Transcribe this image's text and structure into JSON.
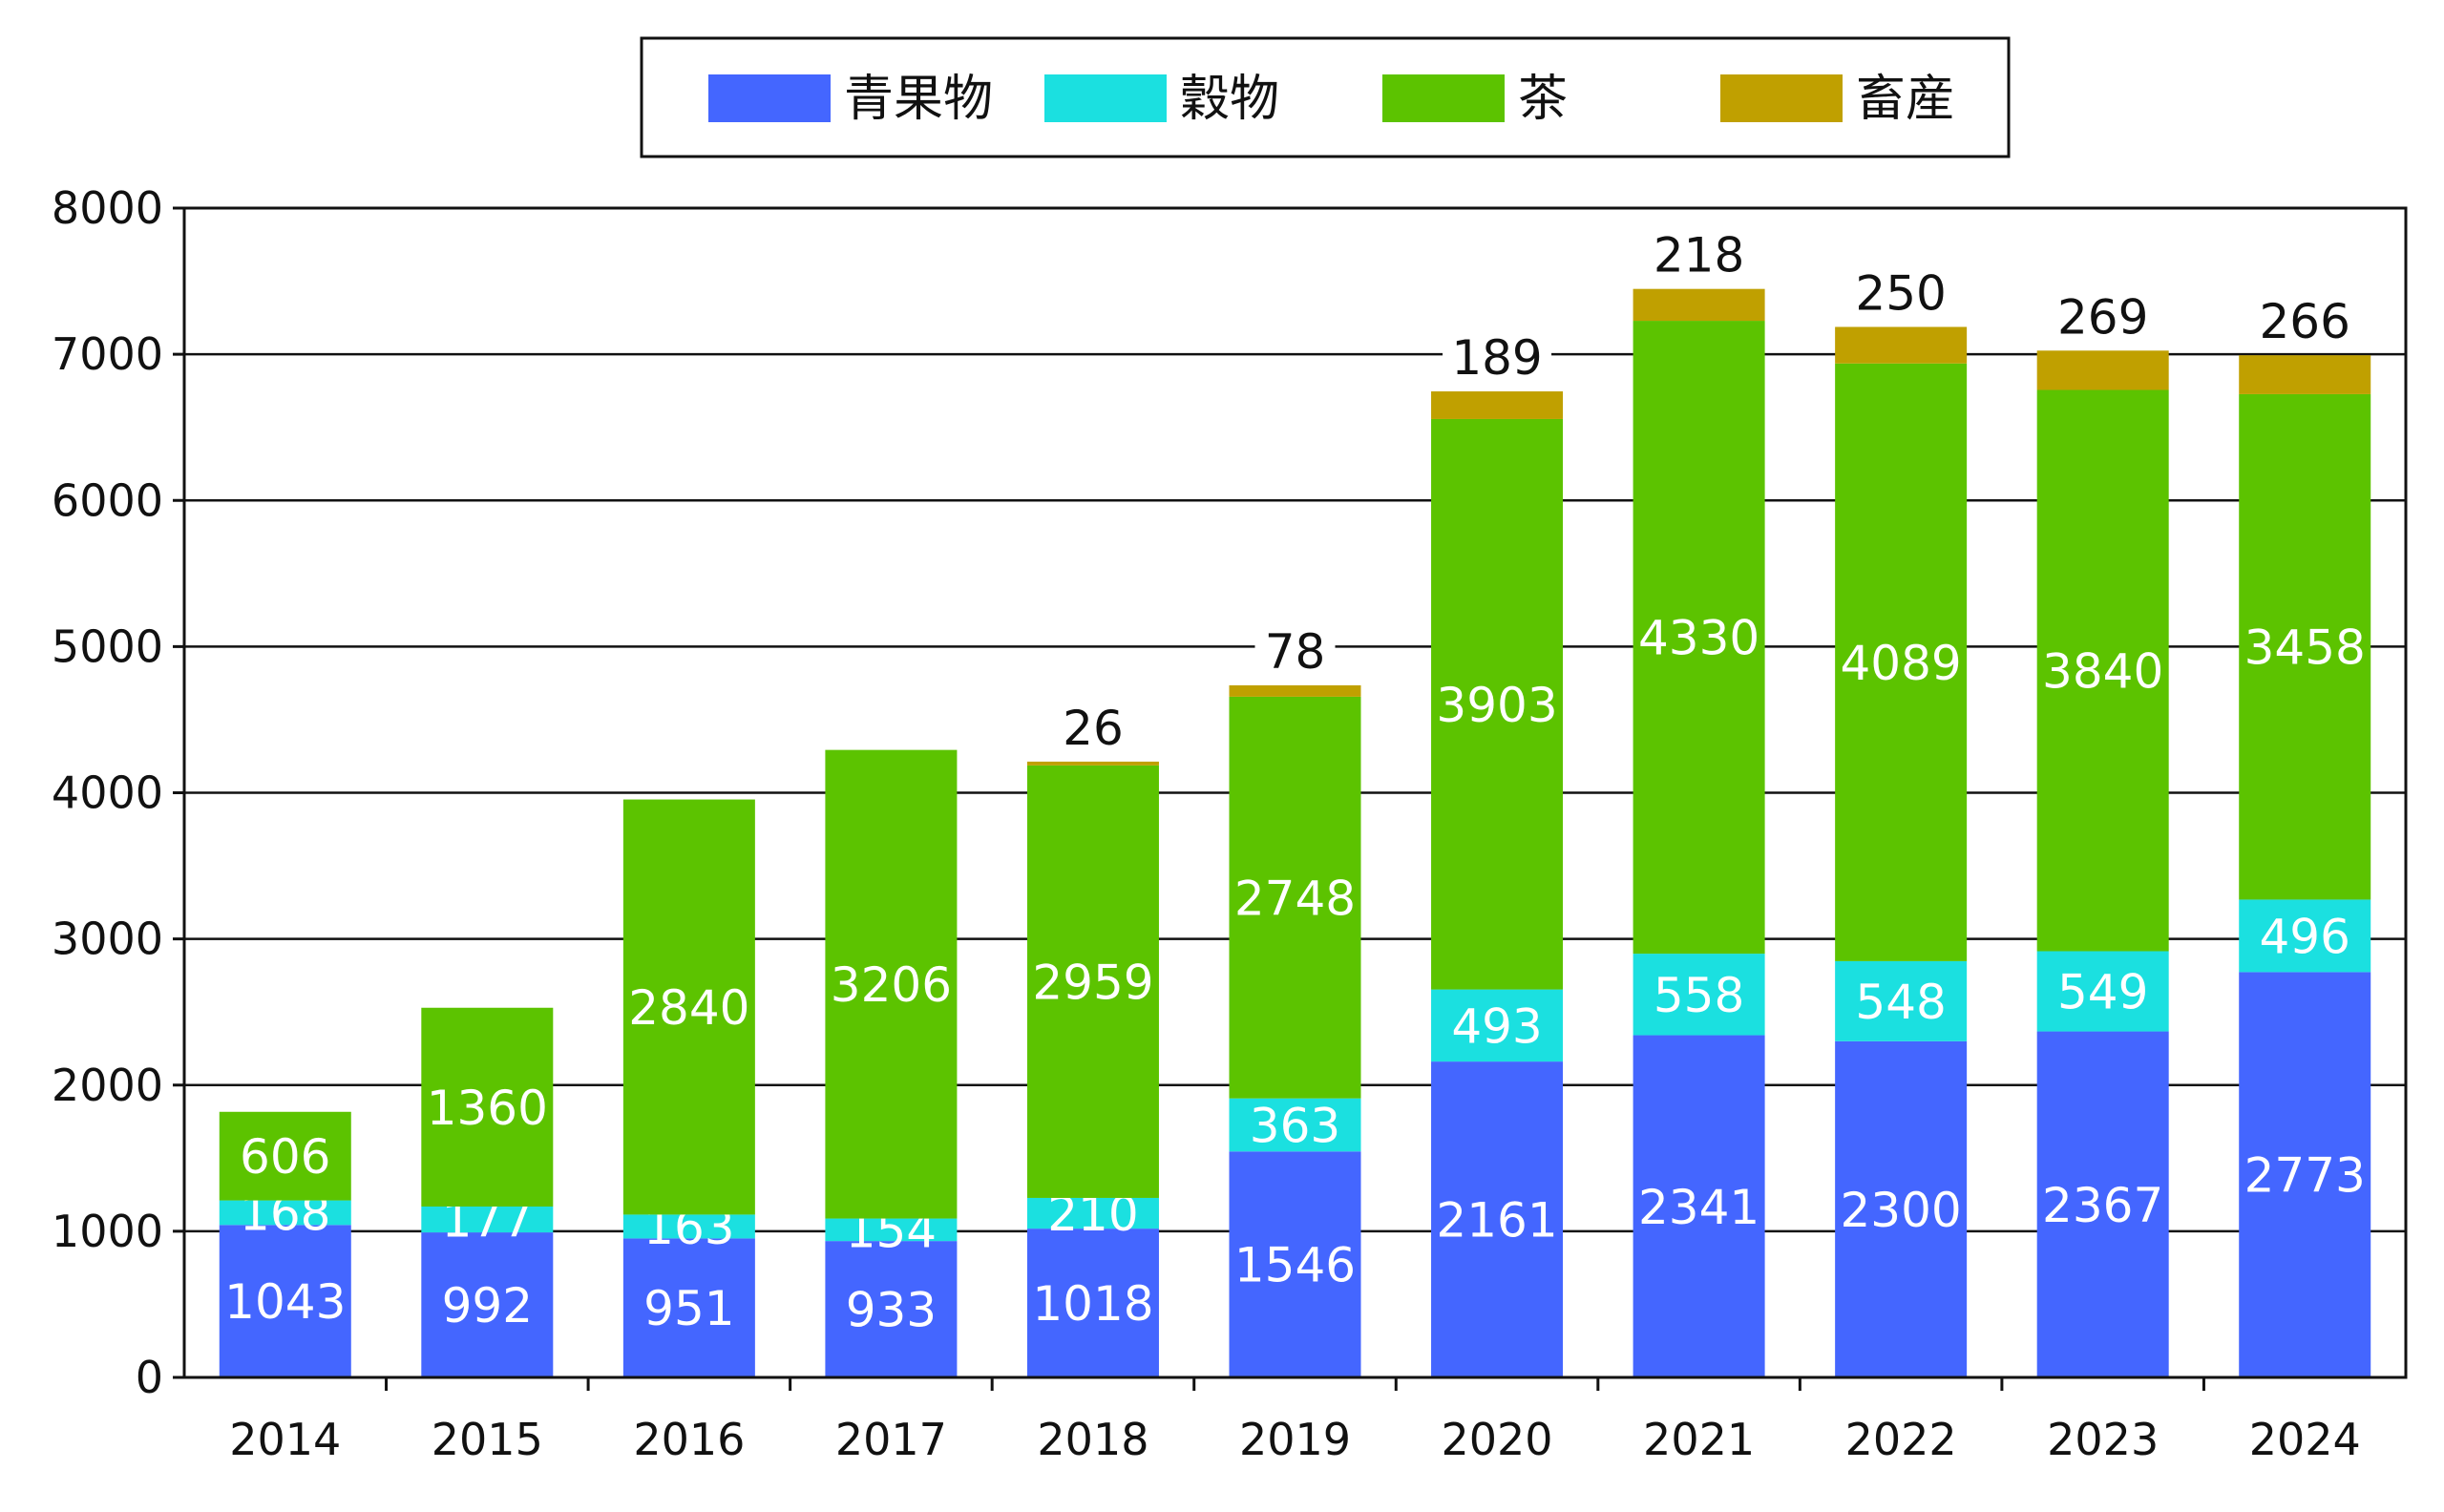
{
  "chart_data": {
    "type": "bar",
    "stacked": true,
    "title": "",
    "xlabel": "",
    "ylabel": "",
    "ylim": [
      0,
      8000
    ],
    "yticks": [
      0,
      1000,
      2000,
      3000,
      4000,
      5000,
      6000,
      7000,
      8000
    ],
    "grid": "horizontal",
    "legend_position": "top-center",
    "categories": [
      "2014",
      "2015",
      "2016",
      "2017",
      "2018",
      "2019",
      "2020",
      "2021",
      "2022",
      "2023",
      "2024"
    ],
    "series": [
      {
        "name": "青果物",
        "color": "#4466FF",
        "values": [
          1043,
          992,
          951,
          933,
          1018,
          1546,
          2161,
          2341,
          2300,
          2367,
          2773
        ]
      },
      {
        "name": "穀物",
        "color": "#1BE0E0",
        "values": [
          168,
          177,
          163,
          154,
          210,
          363,
          493,
          558,
          548,
          549,
          496
        ]
      },
      {
        "name": "茶",
        "color": "#5CC300",
        "values": [
          606,
          1360,
          2840,
          3206,
          2959,
          2748,
          3903,
          4330,
          4089,
          3840,
          3458
        ]
      },
      {
        "name": "畜産",
        "color": "#C0A000",
        "values": [
          null,
          null,
          null,
          null,
          26,
          78,
          189,
          218,
          250,
          269,
          266
        ]
      }
    ]
  }
}
